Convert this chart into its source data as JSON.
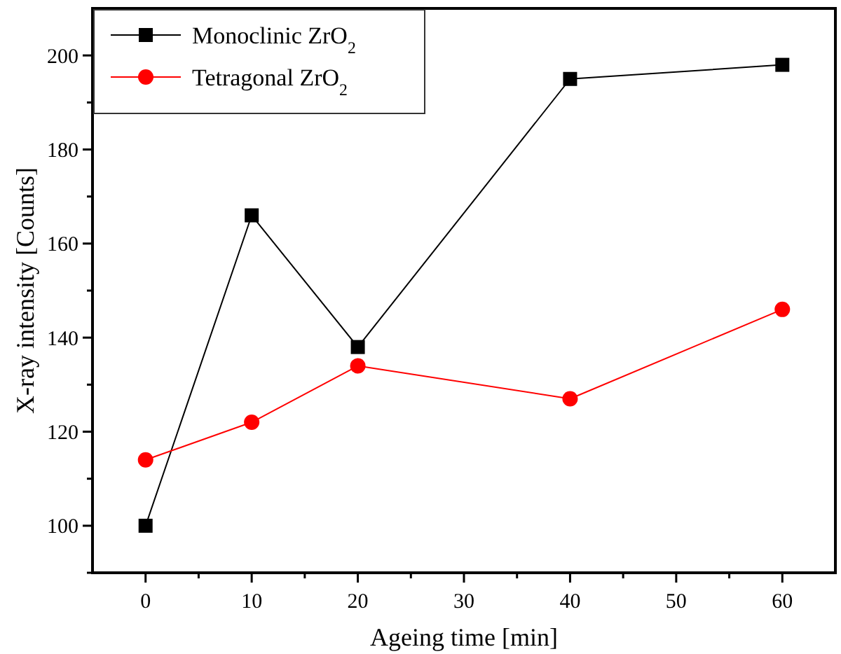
{
  "chart_data": {
    "type": "line",
    "xlabel": "Ageing time [min]",
    "ylabel": "X-ray intensity [Counts]",
    "x": [
      0,
      10,
      20,
      40,
      60
    ],
    "series": [
      {
        "name": "Monoclinic ZrO$_{2}$",
        "color": "#000000",
        "marker": "square",
        "values": [
          100,
          166,
          138,
          195,
          198
        ]
      },
      {
        "name": "Tetragonal ZrO$_{2}$",
        "color": "#ff0000",
        "marker": "circle",
        "values": [
          114,
          122,
          134,
          127,
          146
        ]
      }
    ],
    "xlim": [
      -5,
      65
    ],
    "xticks": [
      0,
      {
        "value": 5,
        "label": null
      },
      10,
      {
        "value": 15,
        "label": null
      },
      20,
      {
        "value": 25,
        "label": null
      },
      30,
      {
        "value": 35,
        "label": null
      },
      40,
      {
        "value": 45,
        "label": null
      },
      50,
      {
        "value": 55,
        "label": null
      },
      60
    ],
    "ylim": [
      90,
      210
    ],
    "yticks": [
      {
        "value": 90,
        "label": null
      },
      100,
      {
        "value": 110,
        "label": null
      },
      120,
      {
        "value": 130,
        "label": null
      },
      140,
      {
        "value": 150,
        "label": null
      },
      160,
      {
        "value": 170,
        "label": null
      },
      180,
      {
        "value": 190,
        "label": null
      },
      200
    ],
    "grid": false,
    "legend": "top left",
    "line_style": "solid"
  }
}
